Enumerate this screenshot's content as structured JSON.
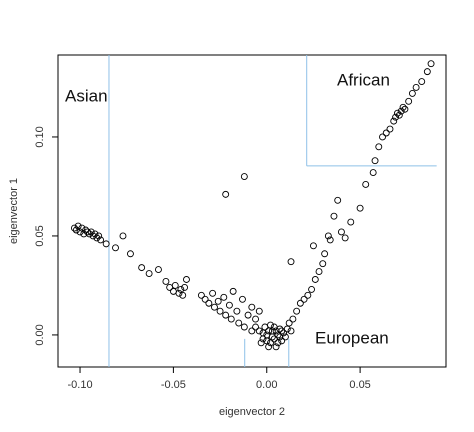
{
  "chart_data": {
    "type": "scatter",
    "xlabel": "eigenvector 2",
    "ylabel": "eigenvector 1",
    "xlim": [
      -0.1118,
      0.096
    ],
    "ylim": [
      -0.0162,
      0.1414
    ],
    "xticks": [
      {
        "value": -0.1,
        "label": "-0.10"
      },
      -0.05,
      {
        "value": 0,
        "label": "0.00"
      },
      0.05
    ],
    "yticks": [
      {
        "value": 0,
        "label": "0.00"
      },
      0.05,
      {
        "value": 0.1,
        "label": "0.10"
      }
    ],
    "color": "#000000",
    "annotations": [
      "Asian",
      "African",
      "European"
    ],
    "reference_color": "#8ec0e8",
    "reference_lines": [
      {
        "x": [
          -0.0845,
          -0.0845
        ],
        "y": [
          -0.0162,
          0.1414
        ]
      },
      {
        "x": [
          0.0214,
          0.0214
        ],
        "y": [
          0.0854,
          0.1414
        ]
      },
      {
        "x": [
          0.0214,
          0.091
        ],
        "y": [
          0.0854,
          0.0854
        ]
      },
      {
        "x": [
          -0.0118,
          -0.0118
        ],
        "y": [
          -0.0162,
          -0.002
        ]
      },
      {
        "x": [
          0.0118,
          0.0118
        ],
        "y": [
          -0.0162,
          -0.002
        ]
      }
    ],
    "x": [
      -0.103,
      -0.102,
      -0.101,
      -0.1,
      -0.099,
      -0.098,
      -0.097,
      -0.096,
      -0.095,
      -0.094,
      -0.093,
      -0.092,
      -0.091,
      -0.09,
      -0.089,
      -0.086,
      -0.081,
      -0.077,
      -0.073,
      -0.067,
      -0.063,
      -0.058,
      -0.054,
      -0.052,
      -0.05,
      -0.049,
      -0.047,
      -0.046,
      -0.045,
      -0.043,
      -0.044,
      -0.035,
      -0.033,
      -0.031,
      -0.029,
      -0.028,
      -0.026,
      -0.025,
      -0.023,
      -0.022,
      -0.02,
      -0.019,
      -0.018,
      -0.016,
      -0.015,
      -0.013,
      -0.012,
      -0.01,
      -0.008,
      -0.006,
      -0.004,
      -0.004,
      -0.002,
      0,
      0.002,
      0.004,
      0.006,
      0.008,
      0.003,
      0.001,
      0.005,
      -0.001,
      0.007,
      0.009,
      0.01,
      -0.003,
      0.002,
      0.004,
      0.006,
      0,
      0.003,
      0.005,
      0.007,
      -0.002,
      0.001,
      0.008,
      0.011,
      0.012,
      0.013,
      -0.006,
      -0.008,
      0.014,
      0.016,
      0.018,
      0.02,
      0.022,
      0.024,
      0.026,
      0.028,
      0.03,
      0.031,
      0.033,
      0.034,
      0.036,
      0.038,
      0.04,
      0.042,
      0.045,
      0.05,
      0.053,
      0.057,
      0.058,
      0.06,
      0.062,
      0.064,
      0.066,
      0.068,
      0.069,
      0.07,
      0.071,
      0.072,
      0.073,
      0.074,
      0.076,
      0.078,
      0.08,
      0.083,
      0.086,
      0.088,
      -0.022,
      -0.012,
      0.013,
      0.025
    ],
    "values": [
      0.054,
      0.053,
      0.055,
      0.052,
      0.054,
      0.051,
      0.053,
      0.052,
      0.051,
      0.052,
      0.05,
      0.051,
      0.049,
      0.05,
      0.048,
      0.046,
      0.044,
      0.05,
      0.041,
      0.034,
      0.031,
      0.033,
      0.027,
      0.024,
      0.022,
      0.025,
      0.021,
      0.023,
      0.02,
      0.028,
      0.024,
      0.02,
      0.018,
      0.016,
      0.021,
      0.014,
      0.017,
      0.012,
      0.019,
      0.01,
      0.015,
      0.008,
      0.022,
      0.012,
      0.006,
      0.018,
      0.004,
      0.01,
      0.014,
      0.008,
      0.012,
      0.002,
      -0.002,
      0,
      -0.004,
      -0.002,
      0,
      -0.003,
      0.002,
      -0.006,
      -0.006,
      0.004,
      0.003,
      0.001,
      -0.001,
      -0.004,
      0.005,
      0.004,
      -0.004,
      -0.003,
      -0.001,
      0.002,
      -0.001,
      0.001,
      0.002,
      0.002,
      0.003,
      0.006,
      0.002,
      0.004,
      0.002,
      0.008,
      0.012,
      0.016,
      0.018,
      0.02,
      0.023,
      0.028,
      0.032,
      0.036,
      0.041,
      0.05,
      0.048,
      0.06,
      0.068,
      0.052,
      0.049,
      0.057,
      0.064,
      0.076,
      0.082,
      0.088,
      0.095,
      0.1,
      0.102,
      0.104,
      0.108,
      0.11,
      0.112,
      0.111,
      0.113,
      0.115,
      0.114,
      0.118,
      0.122,
      0.125,
      0.128,
      0.133,
      0.137,
      0.071,
      0.08,
      0.037,
      0.045
    ]
  }
}
